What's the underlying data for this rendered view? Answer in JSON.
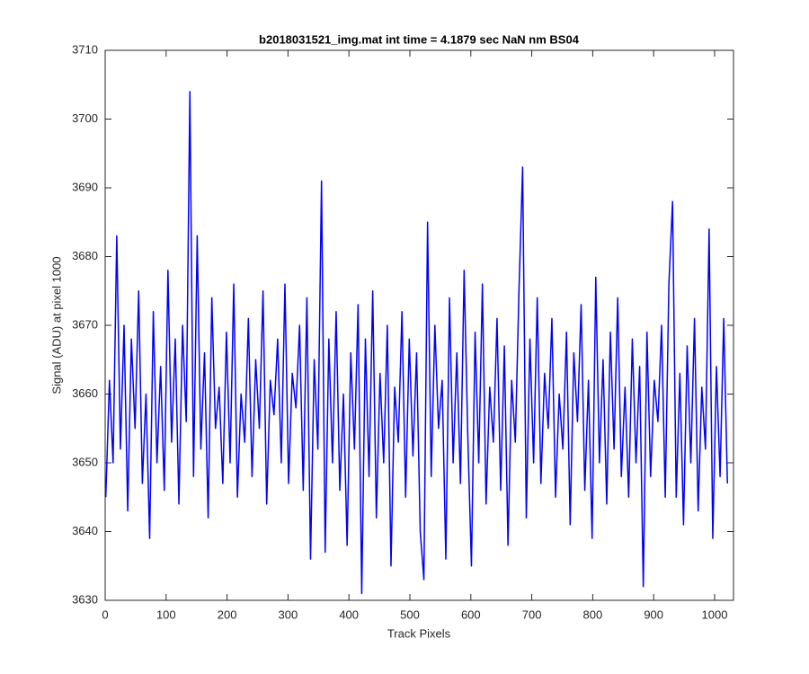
{
  "chart_data": {
    "type": "line",
    "title": "b2018031521_img.mat int time = 4.1879 sec  NaN nm BS04",
    "x_label": "Track Pixels",
    "y_label": "Signal (ADU) at pixel 1000",
    "xlim": [
      0,
      1031
    ],
    "ylim": [
      3630,
      3710
    ],
    "xticks": [
      0,
      100,
      200,
      300,
      400,
      500,
      600,
      700,
      800,
      900,
      1000
    ],
    "yticks": [
      3630,
      3640,
      3650,
      3660,
      3670,
      3680,
      3690,
      3700,
      3710
    ],
    "x": [
      1,
      7,
      13,
      19,
      25,
      31,
      37,
      43,
      49,
      55,
      61,
      67,
      73,
      79,
      85,
      91,
      97,
      103,
      109,
      115,
      121,
      127,
      133,
      139,
      145,
      151,
      157,
      163,
      169,
      175,
      181,
      187,
      193,
      199,
      205,
      211,
      217,
      223,
      229,
      235,
      241,
      247,
      253,
      259,
      265,
      271,
      277,
      283,
      289,
      295,
      301,
      307,
      313,
      319,
      325,
      331,
      337,
      343,
      349,
      355,
      361,
      367,
      373,
      379,
      385,
      391,
      397,
      403,
      409,
      415,
      421,
      427,
      433,
      439,
      445,
      451,
      457,
      463,
      469,
      475,
      481,
      487,
      493,
      499,
      505,
      511,
      517,
      523,
      529,
      535,
      541,
      547,
      553,
      559,
      565,
      571,
      577,
      583,
      589,
      595,
      601,
      607,
      613,
      619,
      625,
      631,
      637,
      643,
      649,
      655,
      661,
      667,
      673,
      679,
      685,
      691,
      697,
      703,
      709,
      715,
      721,
      727,
      733,
      739,
      745,
      751,
      757,
      763,
      769,
      775,
      781,
      787,
      793,
      799,
      805,
      811,
      817,
      823,
      829,
      835,
      841,
      847,
      853,
      859,
      865,
      871,
      877,
      883,
      889,
      895,
      901,
      907,
      913,
      919,
      925,
      931,
      937,
      943,
      949,
      955,
      961,
      967,
      973,
      979,
      985,
      991,
      997,
      1003,
      1009,
      1015,
      1021
    ],
    "series": [
      {
        "color": "#0000ff",
        "values": [
          3645,
          3662,
          3650,
          3683,
          3652,
          3670,
          3643,
          3668,
          3655,
          3675,
          3647,
          3660,
          3639,
          3672,
          3650,
          3664,
          3646,
          3678,
          3653,
          3668,
          3644,
          3670,
          3656,
          3704,
          3648,
          3683,
          3652,
          3666,
          3642,
          3674,
          3655,
          3661,
          3647,
          3669,
          3650,
          3676,
          3645,
          3660,
          3653,
          3671,
          3648,
          3665,
          3655,
          3675,
          3644,
          3662,
          3657,
          3668,
          3650,
          3676,
          3647,
          3663,
          3658,
          3670,
          3646,
          3674,
          3636,
          3665,
          3652,
          3691,
          3637,
          3668,
          3650,
          3672,
          3646,
          3660,
          3638,
          3666,
          3652,
          3673,
          3631,
          3668,
          3648,
          3675,
          3642,
          3663,
          3650,
          3670,
          3635,
          3661,
          3653,
          3672,
          3645,
          3668,
          3651,
          3666,
          3640,
          3633,
          3685,
          3648,
          3670,
          3655,
          3662,
          3636,
          3674,
          3650,
          3666,
          3647,
          3678,
          3654,
          3635,
          3669,
          3650,
          3676,
          3644,
          3661,
          3653,
          3671,
          3646,
          3667,
          3638,
          3662,
          3653,
          3675,
          3693,
          3642,
          3668,
          3650,
          3674,
          3647,
          3663,
          3655,
          3671,
          3645,
          3660,
          3652,
          3669,
          3641,
          3666,
          3656,
          3673,
          3646,
          3662,
          3639,
          3677,
          3650,
          3665,
          3644,
          3669,
          3652,
          3674,
          3648,
          3661,
          3645,
          3668,
          3650,
          3664,
          3632,
          3669,
          3648,
          3662,
          3656,
          3670,
          3645,
          3676,
          3688,
          3645,
          3663,
          3641,
          3667,
          3650,
          3671,
          3643,
          3661,
          3652,
          3684,
          3639,
          3664,
          3648,
          3671,
          3647
        ]
      }
    ]
  }
}
